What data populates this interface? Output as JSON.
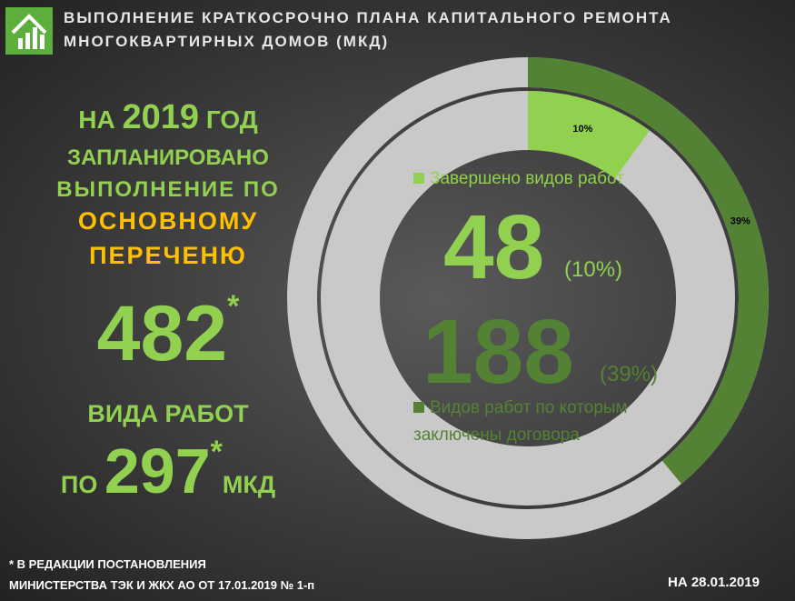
{
  "header": {
    "title_line1": "ВЫПОЛНЕНИЕ КРАТКОСРОЧНО ПЛАНА КАПИТАЛЬНОГО РЕМОНТА",
    "title_line2": "МНОГОКВАРТИРНЫХ ДОМОВ (МКД)"
  },
  "plan": {
    "prefix": "НА",
    "year": "2019",
    "suffix": "ГОД",
    "line2": "ЗАПЛАНИРОВАНО",
    "line3": "ВЫПОЛНЕНИЕ ПО",
    "line4": "ОСНОВНОМУ",
    "line5": "ПЕРЕЧЕНЮ",
    "works": 482,
    "works_mark": "*",
    "works_label": "ВИДА РАБОТ",
    "houses_prefix": "ПО",
    "houses": 297,
    "houses_mark": "*",
    "houses_suffix": "МКД"
  },
  "chart_data": {
    "type": "donut",
    "track_color": "#c9c9c9",
    "series": [
      {
        "name": "Завершено видов работ",
        "color": "#92d050",
        "values": [
          10
        ],
        "value_labels": [
          "10%"
        ],
        "count": 48,
        "count_label": "(10%)"
      },
      {
        "name": "Видов работ по которым заключены договора",
        "color": "#548235",
        "values": [
          39
        ],
        "value_labels": [
          "39%"
        ],
        "count": 188,
        "count_label": "(39%)"
      }
    ]
  },
  "footnote": {
    "line1": "* В РЕДАКЦИИ ПОСТАНОВЛЕНИЯ",
    "line2": "МИНИСТЕРСТВА ТЭК И ЖКХ АО ОТ 17.01.2019 № 1-п"
  },
  "date": "НА 28.01.2019"
}
